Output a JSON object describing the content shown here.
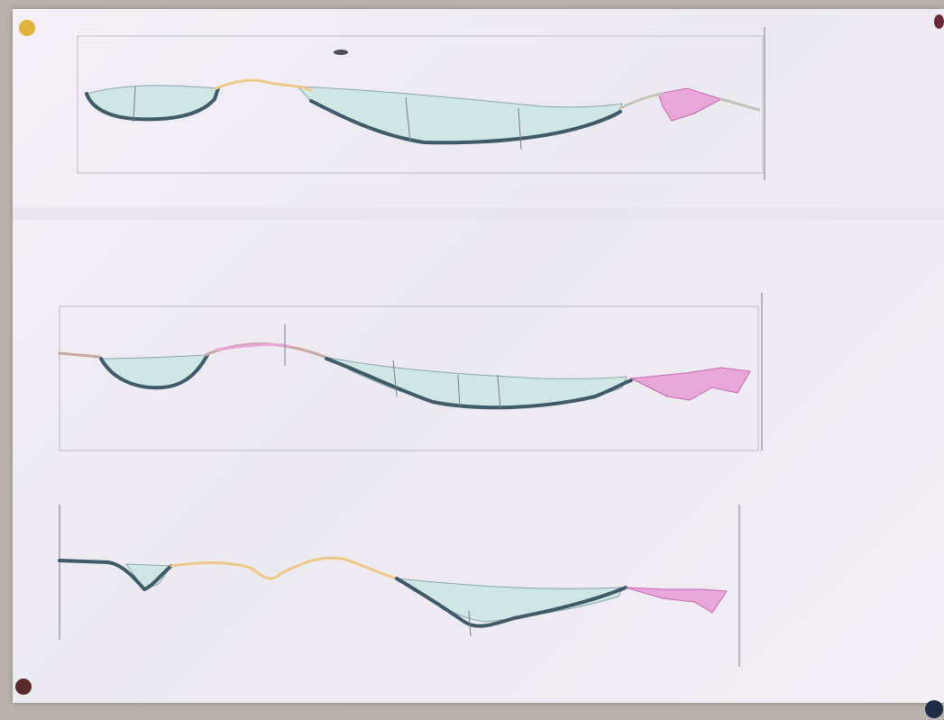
{
  "scene": {
    "subject": "sheet-with-three-cross-sections",
    "colors": {
      "background": "#b9b2ac",
      "sheet": "#f1eef4",
      "ice_fill": "#cfe6e4",
      "base_line": "#3f5a68",
      "warm_outcrop": "#f0c98a",
      "pink_outcrop": "#e9a6d9"
    },
    "pin_colors": [
      "#e0b23a",
      "#6a2a3a",
      "#5a2a2a",
      "#1f2a44"
    ]
  }
}
